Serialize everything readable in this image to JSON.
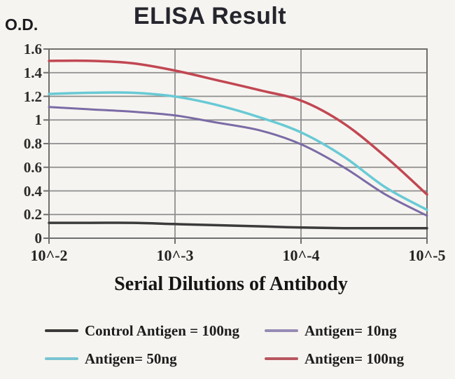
{
  "header": {
    "od_label": "O.D.",
    "title": "ELISA Result"
  },
  "chart_data": {
    "type": "line",
    "title": "ELISA Result",
    "xlabel": "Serial Dilutions of Antibody",
    "ylabel": "O.D.",
    "x_tick_labels": [
      "10^-2",
      "10^-3",
      "10^-4",
      "10^-5"
    ],
    "y_ticks": [
      0,
      0.2,
      0.4,
      0.6,
      0.8,
      1,
      1.2,
      1.4,
      1.6
    ],
    "y_tick_labels": [
      "0",
      "0.2",
      "0.4",
      "0.6",
      "0.8",
      "1",
      "1.2",
      "1.4",
      "1.6"
    ],
    "ylim": [
      0,
      1.6
    ],
    "grid": true,
    "legend_position": "bottom",
    "series": [
      {
        "name": "Control Antigen = 100ng",
        "color": "#3b3b3b",
        "stroke_width": 3.5,
        "values_at_ticks": [
          0.13,
          0.12,
          0.09,
          0.09
        ],
        "samples": [
          [
            0,
            0.13
          ],
          [
            0.11,
            0.13
          ],
          [
            0.22,
            0.13
          ],
          [
            0.33,
            0.12
          ],
          [
            0.44,
            0.11
          ],
          [
            0.56,
            0.1
          ],
          [
            0.67,
            0.09
          ],
          [
            0.78,
            0.085
          ],
          [
            0.89,
            0.085
          ],
          [
            1,
            0.085
          ]
        ]
      },
      {
        "name": "Antigen= 10ng",
        "color": "#7b6ba6",
        "stroke_width": 3,
        "values_at_ticks": [
          1.11,
          1.04,
          0.79,
          0.19
        ],
        "samples": [
          [
            0,
            1.11
          ],
          [
            0.11,
            1.09
          ],
          [
            0.22,
            1.07
          ],
          [
            0.33,
            1.04
          ],
          [
            0.44,
            0.98
          ],
          [
            0.56,
            0.91
          ],
          [
            0.67,
            0.79
          ],
          [
            0.78,
            0.6
          ],
          [
            0.89,
            0.37
          ],
          [
            1,
            0.19
          ]
        ]
      },
      {
        "name": "Antigen= 50ng",
        "color": "#68cad5",
        "stroke_width": 3.5,
        "values_at_ticks": [
          1.22,
          1.2,
          0.89,
          0.24
        ],
        "samples": [
          [
            0,
            1.22
          ],
          [
            0.11,
            1.23
          ],
          [
            0.22,
            1.23
          ],
          [
            0.33,
            1.2
          ],
          [
            0.44,
            1.13
          ],
          [
            0.56,
            1.02
          ],
          [
            0.67,
            0.89
          ],
          [
            0.78,
            0.69
          ],
          [
            0.89,
            0.43
          ],
          [
            1,
            0.24
          ]
        ]
      },
      {
        "name": "Antigen= 100ng",
        "color": "#c14752",
        "stroke_width": 3.5,
        "values_at_ticks": [
          1.5,
          1.42,
          1.16,
          0.37
        ],
        "samples": [
          [
            0,
            1.5
          ],
          [
            0.11,
            1.5
          ],
          [
            0.22,
            1.48
          ],
          [
            0.33,
            1.42
          ],
          [
            0.44,
            1.34
          ],
          [
            0.56,
            1.25
          ],
          [
            0.67,
            1.16
          ],
          [
            0.78,
            0.97
          ],
          [
            0.89,
            0.69
          ],
          [
            1,
            0.37
          ]
        ]
      }
    ]
  },
  "legend_items": [
    {
      "label": "Control Antigen = 100ng",
      "color": "#3b3b3b"
    },
    {
      "label": "Antigen= 10ng",
      "color": "#978bb5"
    },
    {
      "label": "Antigen= 50ng",
      "color": "#79c4d2"
    },
    {
      "label": "Antigen= 100ng",
      "color": "#b8565e"
    }
  ],
  "colors": {
    "grid": "#8e8e8e",
    "axis": "#6f6f6f",
    "background": "#f6f4f0"
  }
}
